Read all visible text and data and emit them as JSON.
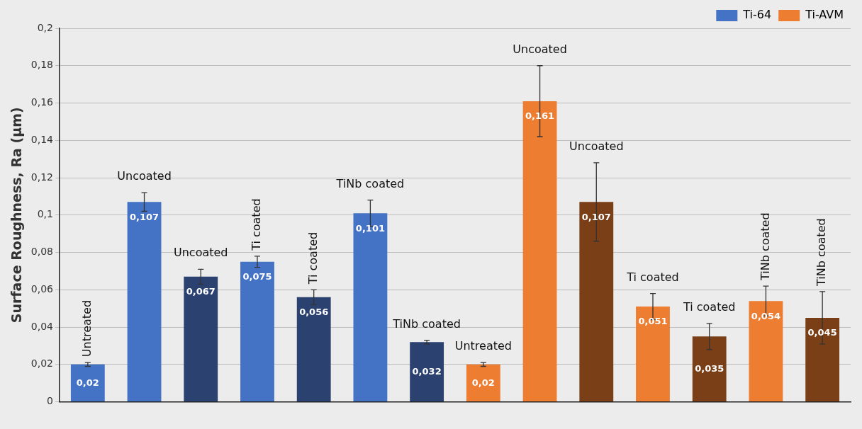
{
  "chart_data": {
    "type": "bar",
    "ylabel": "Surface Roughness, Ra (µm)",
    "categories": [
      null,
      null,
      null,
      null,
      null,
      null,
      null,
      null,
      null,
      null,
      null,
      null,
      null,
      null
    ],
    "annotations": [
      "Untreated",
      "Uncoated",
      "Uncoated",
      "Ti coated",
      "Ti coated",
      "TiNb coated",
      "TiNb coated",
      "Untreated",
      "Uncoated",
      "Uncoated",
      "Ti coated",
      "Ti coated",
      "TiNb coated",
      "TiNb coated"
    ],
    "series": [
      {
        "name": "Ti-64",
        "color": "#4472c4",
        "colors": [
          "#4472c4",
          "#4472c4",
          "#2b4170",
          "#4472c4",
          "#2b4170",
          "#4472c4",
          "#2b4170",
          null,
          null,
          null,
          null,
          null,
          null,
          null
        ],
        "values": [
          0.02,
          0.107,
          0.067,
          0.075,
          0.056,
          0.101,
          0.032,
          null,
          null,
          null,
          null,
          null,
          null,
          null
        ],
        "errors": [
          0.001,
          0.005,
          0.004,
          0.003,
          0.004,
          0.007,
          0.001,
          null,
          null,
          null,
          null,
          null,
          null,
          null
        ],
        "value_labels": [
          "0,02",
          "0,107",
          "0,067",
          "0,075",
          "0,056",
          "0,101",
          "0,032",
          null,
          null,
          null,
          null,
          null,
          null,
          null
        ]
      },
      {
        "name": "Ti-AVM",
        "color": "#ed7d31",
        "colors": [
          null,
          null,
          null,
          null,
          null,
          null,
          null,
          "#ed7d31",
          "#ed7d31",
          "#7a3f17",
          "#ed7d31",
          "#7a3f17",
          "#ed7d31",
          "#7a3f17"
        ],
        "values": [
          null,
          null,
          null,
          null,
          null,
          null,
          null,
          0.02,
          0.161,
          0.107,
          0.051,
          0.035,
          0.054,
          0.045
        ],
        "errors": [
          null,
          null,
          null,
          null,
          null,
          null,
          null,
          0.001,
          0.019,
          0.021,
          0.007,
          0.007,
          0.008,
          0.014
        ],
        "value_labels": [
          null,
          null,
          null,
          null,
          null,
          null,
          null,
          "0,02",
          "0,161",
          "0,107",
          "0,051",
          "0,035",
          "0,054",
          "0,045"
        ]
      }
    ],
    "ylim": [
      0,
      0.2
    ],
    "yticks": [
      0,
      {
        "value": 0.02,
        "label": "0,02"
      },
      {
        "value": 0.04,
        "label": "0,04"
      },
      {
        "value": 0.06,
        "label": "0,06"
      },
      {
        "value": 0.08,
        "label": "0,08"
      },
      {
        "value": 0.1,
        "label": "0,1"
      },
      {
        "value": 0.12,
        "label": "0,12"
      },
      {
        "value": 0.14,
        "label": "0,14"
      },
      {
        "value": 0.16,
        "label": "0,16"
      },
      {
        "value": 0.18,
        "label": "0,18"
      },
      {
        "value": 0.2,
        "label": "0,2"
      }
    ],
    "grid": "y",
    "legend": "top right"
  }
}
